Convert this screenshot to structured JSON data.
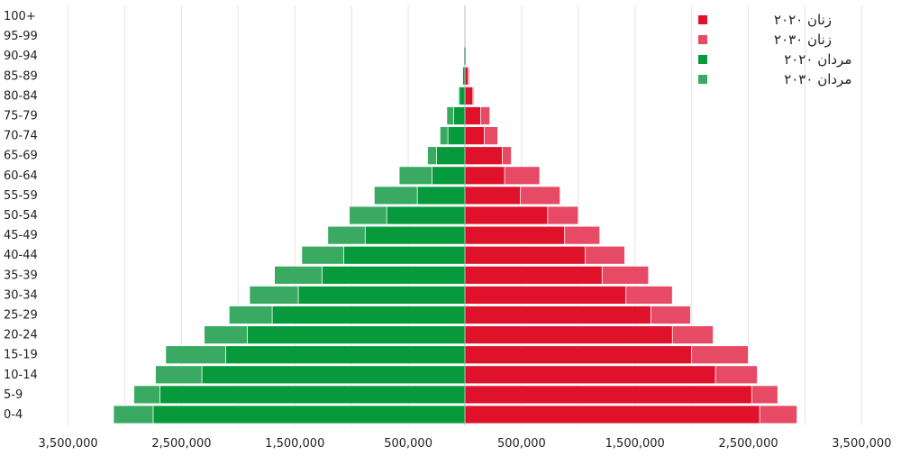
{
  "chart_data": {
    "type": "bar",
    "orientation": "horizontal-pyramid",
    "categories": [
      "0-4",
      "5-9",
      "10-14",
      "15-19",
      "20-24",
      "25-29",
      "30-34",
      "35-39",
      "40-44",
      "45-49",
      "50-54",
      "55-59",
      "60-64",
      "65-69",
      "70-74",
      "75-79",
      "80-84",
      "85-89",
      "90-94",
      "95-99",
      "100+"
    ],
    "series": [
      {
        "name": "زنان ۲۰۲۰",
        "side": "right",
        "color": "#e0112b",
        "values": [
          2600000,
          2530000,
          2210000,
          2000000,
          1830000,
          1640000,
          1420000,
          1210000,
          1060000,
          880000,
          730000,
          490000,
          350000,
          330000,
          170000,
          140000,
          70000,
          30000,
          10000,
          0,
          0
        ]
      },
      {
        "name": "زنان ۲۰۳۰",
        "side": "right",
        "color": "#e64a64",
        "values": [
          2930000,
          2760000,
          2580000,
          2500000,
          2190000,
          1990000,
          1830000,
          1620000,
          1410000,
          1190000,
          1000000,
          840000,
          660000,
          410000,
          290000,
          220000,
          80000,
          40000,
          10000,
          0,
          0
        ]
      },
      {
        "name": "مردان ۲۰۲۰",
        "side": "left",
        "color": "#079a3c",
        "values": [
          2750000,
          2690000,
          2320000,
          2110000,
          1920000,
          1700000,
          1470000,
          1260000,
          1070000,
          880000,
          690000,
          420000,
          290000,
          250000,
          150000,
          100000,
          50000,
          20000,
          10000,
          0,
          0
        ]
      },
      {
        "name": "مردان ۲۰۳۰",
        "side": "left",
        "color": "#3aaa63",
        "values": [
          3100000,
          2920000,
          2730000,
          2640000,
          2300000,
          2080000,
          1900000,
          1680000,
          1440000,
          1210000,
          1020000,
          800000,
          580000,
          330000,
          220000,
          160000,
          60000,
          20000,
          10000,
          0,
          0
        ]
      }
    ],
    "xlim": [
      -3500000,
      3500000
    ],
    "x_tick_values": [
      -3500000,
      -2500000,
      -1500000,
      -500000,
      500000,
      1500000,
      2500000,
      3500000
    ],
    "x_tick_labels": [
      "3,500,000",
      "2,500,000",
      "1,500,000",
      "500,000",
      "500,000",
      "1,500,000",
      "2,500,000",
      "3,500,000"
    ],
    "grid": true,
    "legend_position": "top-right",
    "title": "",
    "xlabel": "",
    "ylabel": ""
  }
}
